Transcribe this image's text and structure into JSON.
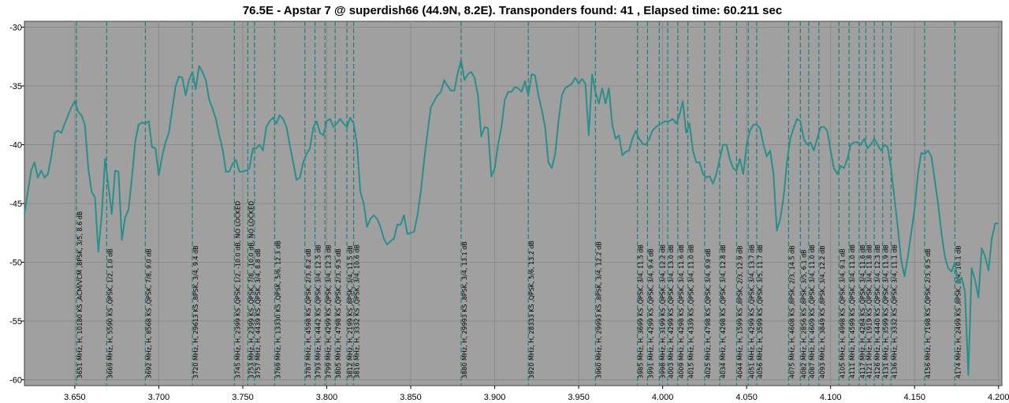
{
  "chart_data": {
    "type": "line",
    "title": "76.5E - Apstar 7 @ superdish66 (44.9N, 8.2E). Transponders found: 41 , Elapsed time: 60.211 sec",
    "xlabel": "",
    "ylabel": "",
    "xlim": [
      3.62,
      4.202
    ],
    "ylim": [
      -60.5,
      -29.5
    ],
    "x_ticks": [
      "3.650",
      "3.700",
      "3.750",
      "3.800",
      "3.850",
      "3.900",
      "3.950",
      "4.000",
      "4.050",
      "4.100",
      "4.150",
      "4.200"
    ],
    "x_tick_values": [
      3.65,
      3.7,
      3.75,
      3.8,
      3.85,
      3.9,
      3.95,
      4.0,
      4.05,
      4.1,
      4.15,
      4.2
    ],
    "y_ticks": [
      "-30",
      "-35",
      "-40",
      "-45",
      "-50",
      "-55",
      "-60"
    ],
    "y_tick_values": [
      -30,
      -35,
      -40,
      -45,
      -50,
      -55,
      -60
    ],
    "grid": true,
    "colors": {
      "plot_bg": "#a0a0a0",
      "line": "#2a8f8a",
      "marker": "#1f7f7a",
      "grid": "#8a8a8a"
    },
    "series": [
      {
        "x": [
          3.62,
          3.622,
          3.624,
          3.626,
          3.628,
          3.63,
          3.632,
          3.634,
          3.636,
          3.638,
          3.64,
          3.642,
          3.644,
          3.646,
          3.648,
          3.65,
          3.652,
          3.654,
          3.656,
          3.658,
          3.66,
          3.662,
          3.664,
          3.666,
          3.668,
          3.67,
          3.672,
          3.674,
          3.676,
          3.678,
          3.68,
          3.682,
          3.684,
          3.686,
          3.688,
          3.69,
          3.692,
          3.694,
          3.696,
          3.698,
          3.7,
          3.702,
          3.704,
          3.706,
          3.708,
          3.71,
          3.712,
          3.714,
          3.716,
          3.718,
          3.72,
          3.722,
          3.724,
          3.726,
          3.728,
          3.73,
          3.732,
          3.734,
          3.736,
          3.738,
          3.74,
          3.742,
          3.744,
          3.746,
          3.748,
          3.75,
          3.752,
          3.754,
          3.756,
          3.758,
          3.76,
          3.762,
          3.764,
          3.766,
          3.768,
          3.77,
          3.772,
          3.774,
          3.776,
          3.778,
          3.78,
          3.782,
          3.784,
          3.786,
          3.788,
          3.79,
          3.792,
          3.794,
          3.796,
          3.798,
          3.8,
          3.802,
          3.804,
          3.806,
          3.808,
          3.81,
          3.812,
          3.814,
          3.816,
          3.818,
          3.82,
          3.822,
          3.824,
          3.826,
          3.828,
          3.83,
          3.832,
          3.834,
          3.836,
          3.838,
          3.84,
          3.842,
          3.844,
          3.846,
          3.848,
          3.85,
          3.852,
          3.854,
          3.856,
          3.858,
          3.86,
          3.862,
          3.864,
          3.866,
          3.868,
          3.87,
          3.872,
          3.874,
          3.876,
          3.878,
          3.88,
          3.882,
          3.884,
          3.886,
          3.888,
          3.89,
          3.892,
          3.894,
          3.896,
          3.898,
          3.9,
          3.902,
          3.904,
          3.906,
          3.908,
          3.91,
          3.912,
          3.914,
          3.916,
          3.918,
          3.92,
          3.922,
          3.924,
          3.926,
          3.928,
          3.93,
          3.932,
          3.934,
          3.936,
          3.938,
          3.94,
          3.942,
          3.944,
          3.946,
          3.948,
          3.95,
          3.952,
          3.954,
          3.956,
          3.958,
          3.96,
          3.962,
          3.964,
          3.966,
          3.968,
          3.97,
          3.972,
          3.974,
          3.976,
          3.978,
          3.98,
          3.982,
          3.984,
          3.986,
          3.988,
          3.99,
          3.992,
          3.994,
          3.996,
          3.998,
          4.0,
          4.002,
          4.004,
          4.006,
          4.008,
          4.01,
          4.012,
          4.014,
          4.016,
          4.018,
          4.02,
          4.022,
          4.024,
          4.026,
          4.028,
          4.03,
          4.032,
          4.034,
          4.036,
          4.038,
          4.04,
          4.042,
          4.044,
          4.046,
          4.048,
          4.05,
          4.052,
          4.054,
          4.056,
          4.058,
          4.06,
          4.062,
          4.064,
          4.066,
          4.068,
          4.07,
          4.072,
          4.074,
          4.076,
          4.078,
          4.08,
          4.082,
          4.084,
          4.086,
          4.088,
          4.09,
          4.092,
          4.094,
          4.096,
          4.098,
          4.1,
          4.102,
          4.104,
          4.106,
          4.108,
          4.11,
          4.112,
          4.114,
          4.116,
          4.118,
          4.12,
          4.122,
          4.124,
          4.126,
          4.128,
          4.13,
          4.132,
          4.134,
          4.136,
          4.138,
          4.14,
          4.142,
          4.144,
          4.146,
          4.148,
          4.15,
          4.152,
          4.154,
          4.156,
          4.158,
          4.16,
          4.162,
          4.164,
          4.166,
          4.168,
          4.17,
          4.172,
          4.174,
          4.176,
          4.178,
          4.18,
          4.182,
          4.184,
          4.186,
          4.188,
          4.19,
          4.192,
          4.194,
          4.196,
          4.198,
          4.2
        ],
        "values": [
          -45.9,
          -44.0,
          -42.2,
          -41.5,
          -42.8,
          -42.2,
          -42.8,
          -42.5,
          -41.0,
          -39.0,
          -38.8,
          -39.0,
          -38.2,
          -37.5,
          -36.8,
          -36.3,
          -37.2,
          -37.5,
          -38.3,
          -42.0,
          -44.0,
          -44.5,
          -49.1,
          -46.0,
          -41.2,
          -43.5,
          -45.9,
          -42.2,
          -42.3,
          -48.1,
          -46.2,
          -45.5,
          -42.8,
          -39.7,
          -38.3,
          -38.1,
          -38.2,
          -38.0,
          -40.2,
          -40.3,
          -42.6,
          -41.0,
          -39.8,
          -39.0,
          -37.0,
          -35.0,
          -34.2,
          -34.3,
          -35.8,
          -34.5,
          -33.8,
          -35.3,
          -33.3,
          -33.8,
          -34.5,
          -36.2,
          -36.9,
          -37.8,
          -39.2,
          -40.4,
          -42.3,
          -42.3,
          -41.6,
          -41.3,
          -42.3,
          -42.3,
          -42.2,
          -42.0,
          -40.3,
          -40.3,
          -40.0,
          -40.5,
          -38.5,
          -38.0,
          -37.7,
          -38.2,
          -37.5,
          -37.8,
          -38.5,
          -40.0,
          -41.5,
          -43.0,
          -42.8,
          -41.5,
          -40.8,
          -40.3,
          -38.5,
          -38.0,
          -39.0,
          -39.2,
          -38.0,
          -37.8,
          -38.5,
          -38.2,
          -37.8,
          -38.2,
          -38.5,
          -37.7,
          -38.2,
          -40.0,
          -44.0,
          -45.0,
          -47.0,
          -46.3,
          -46.0,
          -46.3,
          -47.0,
          -48.0,
          -48.5,
          -48.2,
          -48.0,
          -46.8,
          -46.8,
          -46.0,
          -47.6,
          -47.5,
          -47.4,
          -46.0,
          -44.0,
          -41.3,
          -39.0,
          -36.8,
          -36.3,
          -35.8,
          -35.5,
          -34.5,
          -35.0,
          -35.4,
          -35.4,
          -33.9,
          -32.8,
          -34.5,
          -34.0,
          -33.8,
          -34.3,
          -35.8,
          -39.3,
          -38.5,
          -38.6,
          -42.7,
          -42.0,
          -40.0,
          -38.5,
          -36.2,
          -35.5,
          -35.5,
          -35.1,
          -35.2,
          -35.5,
          -34.6,
          -35.8,
          -34.0,
          -34.1,
          -35.8,
          -37.0,
          -38.5,
          -41.5,
          -42.0,
          -40.8,
          -38.0,
          -35.8,
          -35.2,
          -35.0,
          -34.8,
          -34.3,
          -34.8,
          -34.4,
          -34.8,
          -39.2,
          -34.0,
          -35.5,
          -36.5,
          -35.2,
          -36.5,
          -35.2,
          -38.3,
          -39.5,
          -39.2,
          -40.9,
          -40.6,
          -40.5,
          -39.5,
          -38.8,
          -39.5,
          -39.9,
          -40.0,
          -39.5,
          -38.8,
          -38.5,
          -38.3,
          -38.1,
          -38.0,
          -38.0,
          -37.8,
          -38.2,
          -37.5,
          -36.3,
          -39.0,
          -38.2,
          -40.5,
          -41.5,
          -41.5,
          -42.5,
          -42.8,
          -42.7,
          -43.3,
          -42.5,
          -41.2,
          -40.0,
          -40.0,
          -41.2,
          -42.0,
          -42.2,
          -41.2,
          -42.5,
          -40.0,
          -38.8,
          -38.3,
          -38.3,
          -38.6,
          -40.0,
          -41.0,
          -40.5,
          -42.5,
          -47.3,
          -46.3,
          -44.5,
          -41.5,
          -39.5,
          -38.6,
          -37.8,
          -38.0,
          -39.5,
          -40.0,
          -39.8,
          -40.5,
          -39.5,
          -38.5,
          -38.5,
          -38.8,
          -40.5,
          -42.0,
          -42.5,
          -41.8,
          -42.0,
          -41.2,
          -40.0,
          -39.8,
          -39.8,
          -40.0,
          -39.5,
          -40.3,
          -40.0,
          -39.5,
          -40.0,
          -40.5,
          -40.0,
          -40.2,
          -42.0,
          -44.5,
          -47.0,
          -49.8,
          -51.2,
          -49.5,
          -47.5,
          -45.5,
          -42.5,
          -40.7,
          -40.8,
          -40.5,
          -41.0,
          -43.0,
          -45.0,
          -47.5,
          -49.5,
          -50.5,
          -50.8,
          -50.0,
          -51.8,
          -51.3,
          -52.5,
          -59.6,
          -50.5,
          -51.5,
          -53.0,
          -48.8,
          -49.5,
          -50.7,
          -48.0,
          -46.7,
          -46.7
        ]
      }
    ],
    "transponders": [
      {
        "x": 3.651,
        "label": "3651 MHz, H, 10180 KS ,ACM/VCM ,8PSK, 3/5, 8.6 dB"
      },
      {
        "x": 3.669,
        "label": "3669 MHz, H, 5590 KS ,QPSK, 1/2, 1.0 dB"
      },
      {
        "x": 3.692,
        "label": "3692 MHz, H, 8568 KS ,QPSK, 7/8, 9.0 dB"
      },
      {
        "x": 3.72,
        "label": "3720 MHz, H, 29613 KS ,8PSK, 3/4, 9.4 dB"
      },
      {
        "x": 3.745,
        "label": "3745 MHz, H, 2399 KS ,QPSK, 1/2, -10.0 dB, NO LOCKED"
      },
      {
        "x": 3.753,
        "label": "3753 MHz, H, 2399 KS ,QPSK, 7/8, -10.0 dB, NO LOCKED"
      },
      {
        "x": 3.757,
        "label": "3757 MHz, H, 4439 KS ,QPSK, 3/4, 8.8 dB"
      },
      {
        "x": 3.769,
        "label": "3769 MHz, H, 13330 KS ,QPSK, 5/6, 12.3 dB"
      },
      {
        "x": 3.787,
        "label": "3787 MHz, H, 4598 KS ,QPSK, 2/3, 8.2 dB"
      },
      {
        "x": 3.793,
        "label": "3793 MHz, H, 4442 KS ,QPSK, 3/4, 12.5 dB"
      },
      {
        "x": 3.799,
        "label": "3799 MHz, H, 4299 KS ,QPSK, 3/4, 12.3 dB"
      },
      {
        "x": 3.805,
        "label": "3805 MHz, H, 4798 KS ,QPSK, 2/3, 9.5 dB"
      },
      {
        "x": 3.812,
        "label": "3812 MHz, H, 2199 KS ,8PSK, 3/4, 11.5 dB"
      },
      {
        "x": 3.816,
        "label": "3816 MHz, H, 3332 KS ,QPSK, 3/4, 10.6 dB"
      },
      {
        "x": 3.88,
        "label": "3880 MHz, H, 29993 KS ,8PSK, 3/4, 13.1 dB"
      },
      {
        "x": 3.92,
        "label": "3920 MHz, H, 28333 KS ,QPSK, 5/6, 13.2 dB"
      },
      {
        "x": 3.96,
        "label": "3960 MHz, H, 29993 KS ,8PSK, 3/4, 12.2 dB"
      },
      {
        "x": 3.985,
        "label": "3985 MHz, H, 3699 KS ,QPSK, 3/4, 11.5 dB"
      },
      {
        "x": 3.991,
        "label": "3991 MHz, H, 4299 KS ,QPSK, 3/4, 9.4 dB"
      },
      {
        "x": 3.998,
        "label": "3998 MHz, H, 3199 KS ,QPSK, 3/4, 12.2 dB"
      },
      {
        "x": 4.003,
        "label": "4003 MHz, H, 4299 KS ,QPSK, 3/4, 13.0 dB"
      },
      {
        "x": 4.009,
        "label": "4009 MHz, H, 4298 KS ,QPSK, 3/4, 11.6 dB"
      },
      {
        "x": 4.015,
        "label": "4015 MHz, H, 4339 KS ,QPSK, 3/4, 11.0 dB"
      },
      {
        "x": 4.025,
        "label": "4025 MHz, H, 4798 KS ,QPSK, 3/4, 9.9 dB"
      },
      {
        "x": 4.034,
        "label": "4034 MHz, H, 4298 KS ,QPSK, 3/4, 12.8 dB"
      },
      {
        "x": 4.044,
        "label": "4044 MHz, H, 1599 KS ,8PSK, 2/3, 12.9 dB"
      },
      {
        "x": 4.051,
        "label": "4051 MHz, H, 4299 KS ,QPSK, 3/4, 13.7 dB"
      },
      {
        "x": 4.056,
        "label": "4056 MHz, H, 3599 KS ,QPSK, 3/5, 11.7 dB"
      },
      {
        "x": 4.075,
        "label": "4075 MHz, H, 4608 KS ,8PSK, 2/3, 14.5 dB"
      },
      {
        "x": 4.082,
        "label": "4082 MHz, H, 2856 KS ,8PSK, 3/5, 6.1 dB"
      },
      {
        "x": 4.087,
        "label": "4087 MHz, H, 4609 KS ,QPSK, 3/4, 11.0 dB"
      },
      {
        "x": 4.093,
        "label": "4093 MHz, H, 3849 KS ,8PSK, 3/4, 12.2 dB"
      },
      {
        "x": 4.105,
        "label": "4105 MHz, H, 4998 KS ,QPSK, 3/4, 9.1 dB"
      },
      {
        "x": 4.111,
        "label": "4111 MHz, H, 4599 KS ,QPSK, 3/4, 11.0 dB"
      },
      {
        "x": 4.117,
        "label": "4117 MHz, H, 4284 KS ,QPSK, 3/4, 11.6 dB"
      },
      {
        "x": 4.121,
        "label": "4121 MHz, H, 1919 KS ,QPSK, 3/4, 11.8 dB"
      },
      {
        "x": 4.126,
        "label": "4126 MHz, H, 4440 KS ,QPSK, 3/4, 12.3 dB"
      },
      {
        "x": 4.131,
        "label": "4131 MHz, H, 3599 KS ,QPSK, 3/4, 11.9 dB"
      },
      {
        "x": 4.136,
        "label": "4136 MHz, H, 3332 KS ,QPSK, 3/4, 11.1 dB"
      },
      {
        "x": 4.156,
        "label": "4156 MHz, H, 7198 KS ,QPSK, 2/3, 9.5 dB"
      },
      {
        "x": 4.174,
        "label": "4174 MHz, H, 2499 KS ,8PSK, 3/4, 10.1 dB"
      }
    ]
  }
}
